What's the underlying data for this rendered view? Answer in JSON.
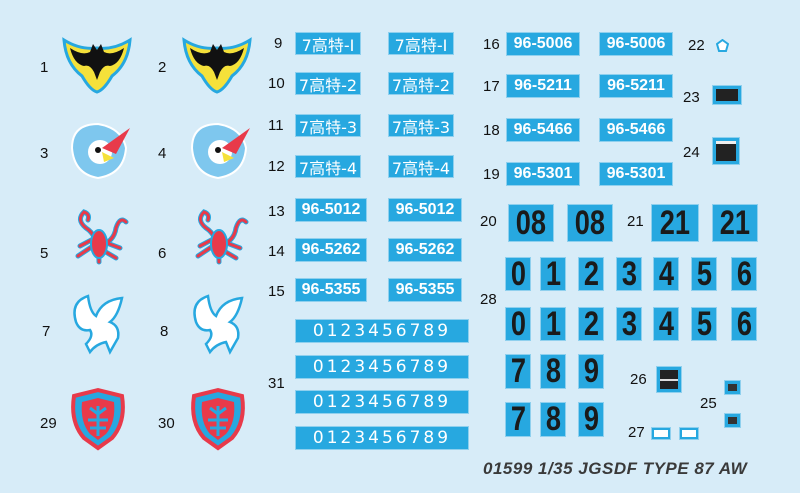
{
  "emblems": [
    {
      "id": "1",
      "type": "bat"
    },
    {
      "id": "2",
      "type": "bat"
    },
    {
      "id": "3",
      "type": "bird"
    },
    {
      "id": "4",
      "type": "bird"
    },
    {
      "id": "5",
      "type": "scorpion"
    },
    {
      "id": "6",
      "type": "scorpion"
    },
    {
      "id": "7",
      "type": "pegasus"
    },
    {
      "id": "8",
      "type": "pegasus"
    },
    {
      "id": "29",
      "type": "scorpion-shield"
    },
    {
      "id": "30",
      "type": "scorpion-shield"
    }
  ],
  "kanji_decals": [
    {
      "id": "9",
      "text": "7高特-Ⅰ"
    },
    {
      "id": "10",
      "text": "7高特-2"
    },
    {
      "id": "11",
      "text": "7高特-3"
    },
    {
      "id": "12",
      "text": "7高特-4"
    }
  ],
  "plates_left": [
    {
      "id": "13",
      "text": "96-5012"
    },
    {
      "id": "14",
      "text": "96-5262"
    },
    {
      "id": "15",
      "text": "96-5355"
    }
  ],
  "plates_right": [
    {
      "id": "16",
      "text": "96-5006"
    },
    {
      "id": "17",
      "text": "96-5211"
    },
    {
      "id": "18",
      "text": "96-5466"
    },
    {
      "id": "19",
      "text": "96-5301"
    }
  ],
  "sequence": {
    "id": "31",
    "text": "0123456789"
  },
  "big_numbers": [
    {
      "id": "20",
      "text": "08"
    },
    {
      "id": "21",
      "text": "21"
    }
  ],
  "digits": {
    "id": "28",
    "row1": [
      "0",
      "1",
      "2",
      "3",
      "4",
      "5",
      "6"
    ],
    "row2": [
      "7",
      "8",
      "9"
    ]
  },
  "small": {
    "l22": "22",
    "l23": "23",
    "l24": "24",
    "l25": "25",
    "l26": "26",
    "l27": "27"
  },
  "footer": "01599 1/35 JGSDF TYPE 87 AW",
  "colors": {
    "background": "#d7ecf8",
    "decal_blue": "#27a8e0",
    "emblem_red": "#e83a4a",
    "emblem_yellow": "#f5e13a"
  }
}
